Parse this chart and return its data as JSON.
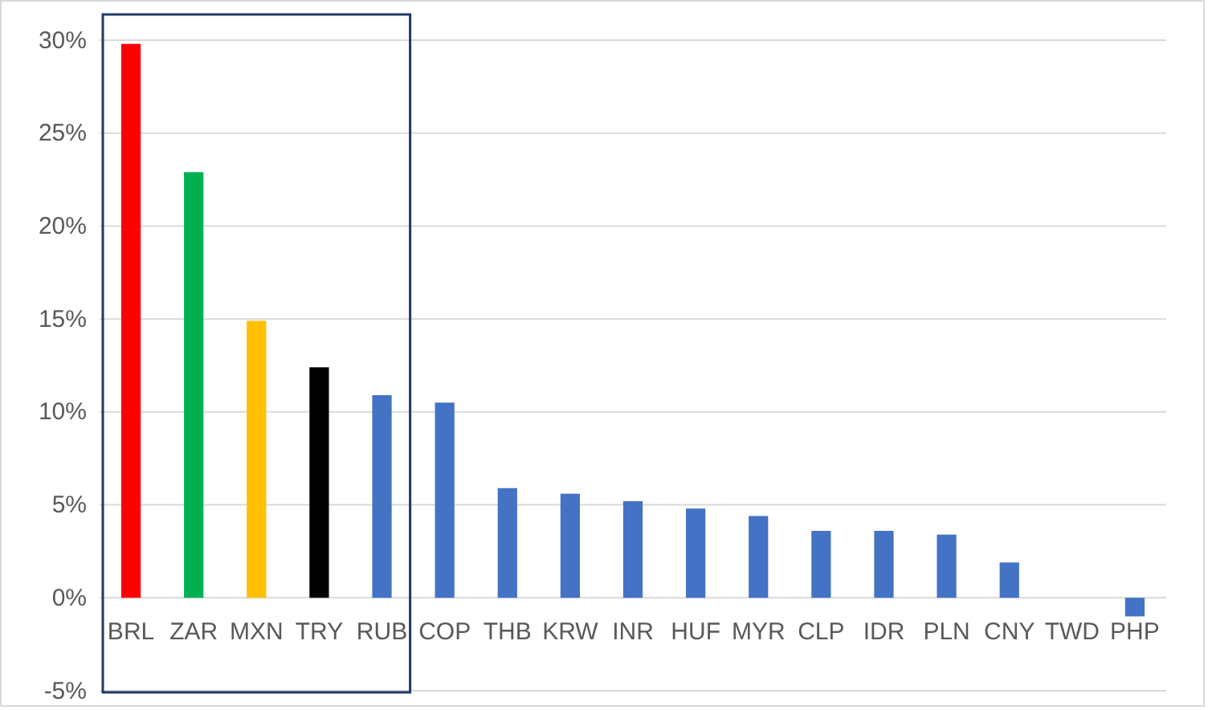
{
  "chart_data": {
    "type": "bar",
    "categories": [
      "BRL",
      "ZAR",
      "MXN",
      "TRY",
      "RUB",
      "COP",
      "THB",
      "KRW",
      "INR",
      "HUF",
      "MYR",
      "CLP",
      "IDR",
      "PLN",
      "CNY",
      "TWD",
      "PHP"
    ],
    "values": [
      29.8,
      22.9,
      14.9,
      12.4,
      10.9,
      10.5,
      5.9,
      5.6,
      5.2,
      4.8,
      4.4,
      3.6,
      3.6,
      3.4,
      1.9,
      0,
      -1.0
    ],
    "colors": [
      "#ff0000",
      "#00b050",
      "#ffc000",
      "#000000",
      "#4472c4",
      "#4472c4",
      "#4472c4",
      "#4472c4",
      "#4472c4",
      "#4472c4",
      "#4472c4",
      "#4472c4",
      "#4472c4",
      "#4472c4",
      "#4472c4",
      "#4472c4",
      "#4472c4"
    ],
    "ylim": [
      -5,
      30
    ],
    "yticks": [
      {
        "value": -5,
        "label": "-5%"
      },
      {
        "value": 0,
        "label": "0%"
      },
      {
        "value": 5,
        "label": "5%"
      },
      {
        "value": 10,
        "label": "10%"
      },
      {
        "value": 15,
        "label": "15%"
      },
      {
        "value": 20,
        "label": "20%"
      },
      {
        "value": 25,
        "label": "25%"
      },
      {
        "value": 30,
        "label": "30%"
      }
    ],
    "grid": "y"
  }
}
